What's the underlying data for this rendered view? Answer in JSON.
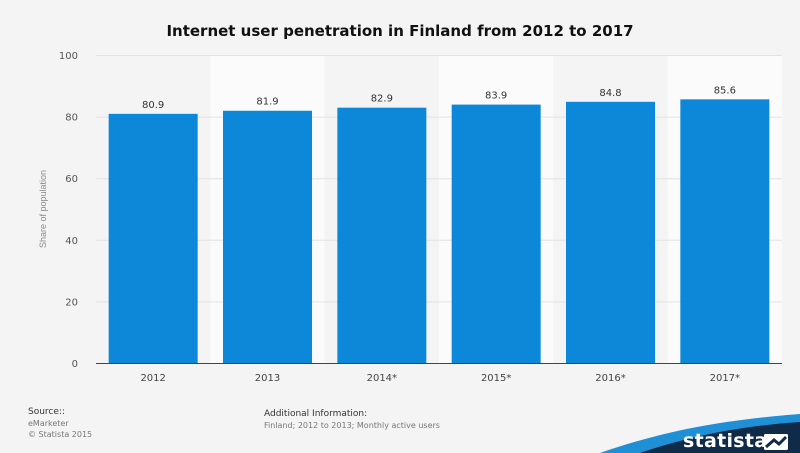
{
  "chart_data": {
    "type": "bar",
    "title": "Internet user penetration in Finland from 2012 to 2017",
    "ylabel": "Share of population",
    "xlabel": "",
    "categories": [
      "2012",
      "2013",
      "2014*",
      "2015*",
      "2016*",
      "2017*"
    ],
    "values": [
      80.9,
      81.9,
      82.9,
      83.9,
      84.8,
      85.6
    ],
    "value_labels": [
      "80.9",
      "81.9",
      "82.9",
      "83.9",
      "84.8",
      "85.6"
    ],
    "ylim": [
      0,
      100
    ],
    "yticks": [
      "0",
      "20",
      "40",
      "60",
      "80",
      "100"
    ],
    "ytick_values": [
      0,
      20,
      40,
      60,
      80,
      100
    ],
    "grid": true,
    "legend": "none",
    "bar_color": "#0d88d8"
  },
  "footer": {
    "source_label": "Source::",
    "source_lines": [
      "eMarketer",
      "© Statista 2015"
    ],
    "info_label": "Additional Information:",
    "info_text": "Finland; 2012 to 2013; Monthly active users"
  },
  "brand": {
    "name": "statista",
    "band_color": "#0f2b47",
    "accent_color": "#1f8fd6"
  }
}
